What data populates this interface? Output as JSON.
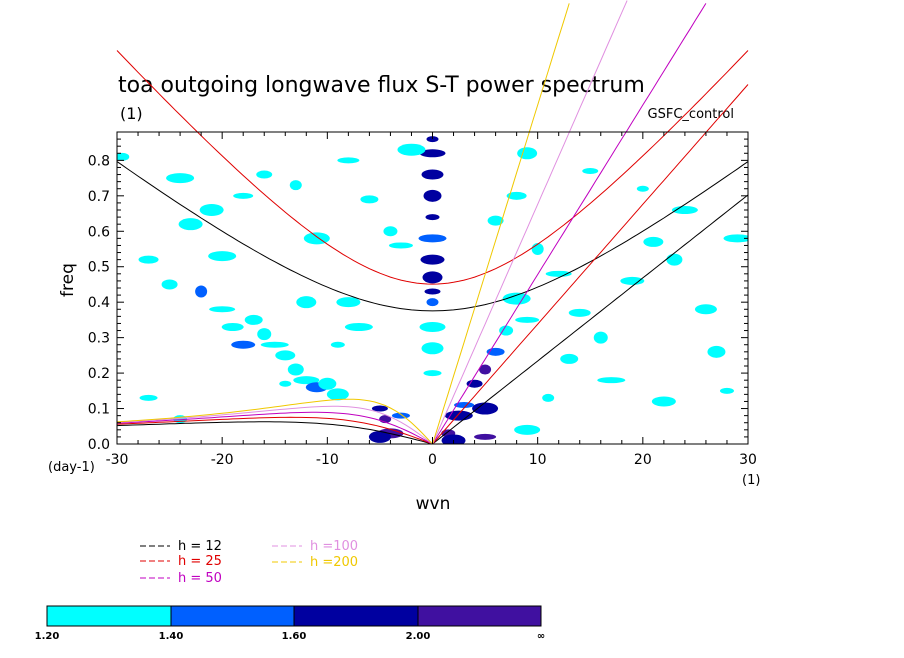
{
  "chart_data": {
    "type": "contour",
    "title": "toa outgoing longwave flux S-T power spectrum",
    "subtitle_left": "(1)",
    "subtitle_right": "GSFC_control",
    "xlabel": "wvn",
    "ylabel": "freq",
    "x_unit_label": "(1)",
    "y_unit_label": "(day-1)",
    "xlim": [
      -30,
      30
    ],
    "ylim": [
      0,
      0.88
    ],
    "x_ticks": [
      {
        "value": -30,
        "label": "-30"
      },
      {
        "value": -20,
        "label": "-20"
      },
      {
        "value": -10,
        "label": "-10"
      },
      {
        "value": 0,
        "label": "0"
      },
      {
        "value": 10,
        "label": "10"
      },
      {
        "value": 20,
        "label": "20"
      },
      {
        "value": 30,
        "label": "30"
      }
    ],
    "y_ticks": [
      {
        "value": 0.0,
        "label": "0.0"
      },
      {
        "value": 0.1,
        "label": "0.1"
      },
      {
        "value": 0.2,
        "label": "0.2"
      },
      {
        "value": 0.3,
        "label": "0.3"
      },
      {
        "value": 0.4,
        "label": "0.4"
      },
      {
        "value": 0.5,
        "label": "0.5"
      },
      {
        "value": 0.6,
        "label": "0.6"
      },
      {
        "value": 0.7,
        "label": "0.7"
      },
      {
        "value": 0.8,
        "label": "0.8"
      }
    ],
    "dispersion_curves": [
      {
        "label": "h = 12",
        "h": 12,
        "color": "#000000"
      },
      {
        "label": "h = 25",
        "h": 25,
        "color": "#e00000"
      },
      {
        "label": "h = 50",
        "h": 50,
        "color": "#c000c0"
      },
      {
        "label": "h =100",
        "h": 100,
        "color": "#e090e0"
      },
      {
        "label": "h =200",
        "h": 200,
        "color": "#f0c800"
      }
    ],
    "contour_levels": [
      {
        "label": "1.20",
        "color": "#00ffff"
      },
      {
        "label": "1.40",
        "color": "#0060ff"
      },
      {
        "label": "1.60",
        "color": "#0000a0"
      },
      {
        "label": "2.00",
        "color": "#4010a0"
      },
      {
        "label": "∞",
        "color": null
      }
    ],
    "blobs": [
      {
        "x": 0,
        "y": 0.86,
        "level": 2
      },
      {
        "x": 0,
        "y": 0.82,
        "level": 2
      },
      {
        "x": 0,
        "y": 0.76,
        "level": 2
      },
      {
        "x": 0,
        "y": 0.7,
        "level": 2
      },
      {
        "x": 0,
        "y": 0.64,
        "level": 2
      },
      {
        "x": 0,
        "y": 0.58,
        "level": 1
      },
      {
        "x": 0,
        "y": 0.52,
        "level": 2
      },
      {
        "x": 0,
        "y": 0.47,
        "level": 2
      },
      {
        "x": 0,
        "y": 0.43,
        "level": 2
      },
      {
        "x": 0,
        "y": 0.4,
        "level": 1
      },
      {
        "x": 0,
        "y": 0.33,
        "level": 0
      },
      {
        "x": 0,
        "y": 0.27,
        "level": 0
      },
      {
        "x": 0,
        "y": 0.2,
        "level": 0
      },
      {
        "x": -29.5,
        "y": 0.81,
        "level": 0
      },
      {
        "x": -24,
        "y": 0.75,
        "level": 0
      },
      {
        "x": -21,
        "y": 0.66,
        "level": 0
      },
      {
        "x": -18,
        "y": 0.7,
        "level": 0
      },
      {
        "x": -16,
        "y": 0.76,
        "level": 0
      },
      {
        "x": -13,
        "y": 0.73,
        "level": 0
      },
      {
        "x": -11,
        "y": 0.58,
        "level": 0
      },
      {
        "x": -8,
        "y": 0.8,
        "level": 0
      },
      {
        "x": -6,
        "y": 0.69,
        "level": 0
      },
      {
        "x": -4,
        "y": 0.6,
        "level": 0
      },
      {
        "x": -2,
        "y": 0.83,
        "level": 0
      },
      {
        "x": -3,
        "y": 0.56,
        "level": 0
      },
      {
        "x": -27,
        "y": 0.52,
        "level": 0
      },
      {
        "x": -25,
        "y": 0.45,
        "level": 0
      },
      {
        "x": -22,
        "y": 0.43,
        "level": 1
      },
      {
        "x": -20,
        "y": 0.38,
        "level": 0
      },
      {
        "x": -19,
        "y": 0.33,
        "level": 0
      },
      {
        "x": -17,
        "y": 0.35,
        "level": 0
      },
      {
        "x": -16,
        "y": 0.31,
        "level": 0
      },
      {
        "x": -15,
        "y": 0.28,
        "level": 0
      },
      {
        "x": -18,
        "y": 0.28,
        "level": 1
      },
      {
        "x": -14,
        "y": 0.25,
        "level": 0
      },
      {
        "x": -13,
        "y": 0.21,
        "level": 0
      },
      {
        "x": -14,
        "y": 0.17,
        "level": 0
      },
      {
        "x": -12,
        "y": 0.18,
        "level": 0
      },
      {
        "x": -11,
        "y": 0.16,
        "level": 1
      },
      {
        "x": -10,
        "y": 0.17,
        "level": 0
      },
      {
        "x": -9,
        "y": 0.28,
        "level": 0
      },
      {
        "x": -7,
        "y": 0.33,
        "level": 0
      },
      {
        "x": -8,
        "y": 0.4,
        "level": 0
      },
      {
        "x": -12,
        "y": 0.4,
        "level": 0
      },
      {
        "x": -5,
        "y": 0.1,
        "level": 2
      },
      {
        "x": -4.5,
        "y": 0.07,
        "level": 3
      },
      {
        "x": -4,
        "y": 0.03,
        "level": 3
      },
      {
        "x": -5,
        "y": 0.02,
        "level": 2
      },
      {
        "x": -3,
        "y": 0.08,
        "level": 1
      },
      {
        "x": 1.5,
        "y": 0.03,
        "level": 3
      },
      {
        "x": 2.5,
        "y": 0.08,
        "level": 2
      },
      {
        "x": 2,
        "y": 0.01,
        "level": 2
      },
      {
        "x": 3,
        "y": 0.11,
        "level": 1
      },
      {
        "x": 4,
        "y": 0.17,
        "level": 2
      },
      {
        "x": 5,
        "y": 0.21,
        "level": 3
      },
      {
        "x": 5,
        "y": 0.1,
        "level": 2
      },
      {
        "x": 5,
        "y": 0.02,
        "level": 3
      },
      {
        "x": 6,
        "y": 0.26,
        "level": 1
      },
      {
        "x": 7,
        "y": 0.32,
        "level": 0
      },
      {
        "x": 8,
        "y": 0.41,
        "level": 0
      },
      {
        "x": 9,
        "y": 0.35,
        "level": 0
      },
      {
        "x": 8,
        "y": 0.7,
        "level": 0
      },
      {
        "x": 6,
        "y": 0.63,
        "level": 0
      },
      {
        "x": 10,
        "y": 0.55,
        "level": 0
      },
      {
        "x": 12,
        "y": 0.48,
        "level": 0
      },
      {
        "x": 14,
        "y": 0.37,
        "level": 0
      },
      {
        "x": 13,
        "y": 0.24,
        "level": 0
      },
      {
        "x": 16,
        "y": 0.3,
        "level": 0
      },
      {
        "x": 17,
        "y": 0.18,
        "level": 0
      },
      {
        "x": 19,
        "y": 0.46,
        "level": 0
      },
      {
        "x": 21,
        "y": 0.57,
        "level": 0
      },
      {
        "x": 23,
        "y": 0.52,
        "level": 0
      },
      {
        "x": 20,
        "y": 0.72,
        "level": 0
      },
      {
        "x": 24,
        "y": 0.66,
        "level": 0
      },
      {
        "x": 26,
        "y": 0.38,
        "level": 0
      },
      {
        "x": 27,
        "y": 0.26,
        "level": 0
      },
      {
        "x": 28,
        "y": 0.15,
        "level": 0
      },
      {
        "x": 29,
        "y": 0.58,
        "level": 0
      },
      {
        "x": 22,
        "y": 0.12,
        "level": 0
      },
      {
        "x": 9,
        "y": 0.82,
        "level": 0
      },
      {
        "x": 15,
        "y": 0.77,
        "level": 0
      },
      {
        "x": 11,
        "y": 0.13,
        "level": 0
      },
      {
        "x": 9,
        "y": 0.04,
        "level": 0
      },
      {
        "x": -9,
        "y": 0.14,
        "level": 0
      },
      {
        "x": -27,
        "y": 0.13,
        "level": 0
      },
      {
        "x": -24,
        "y": 0.07,
        "level": 0
      },
      {
        "x": -20,
        "y": 0.53,
        "level": 0
      },
      {
        "x": -23,
        "y": 0.62,
        "level": 0
      }
    ]
  }
}
